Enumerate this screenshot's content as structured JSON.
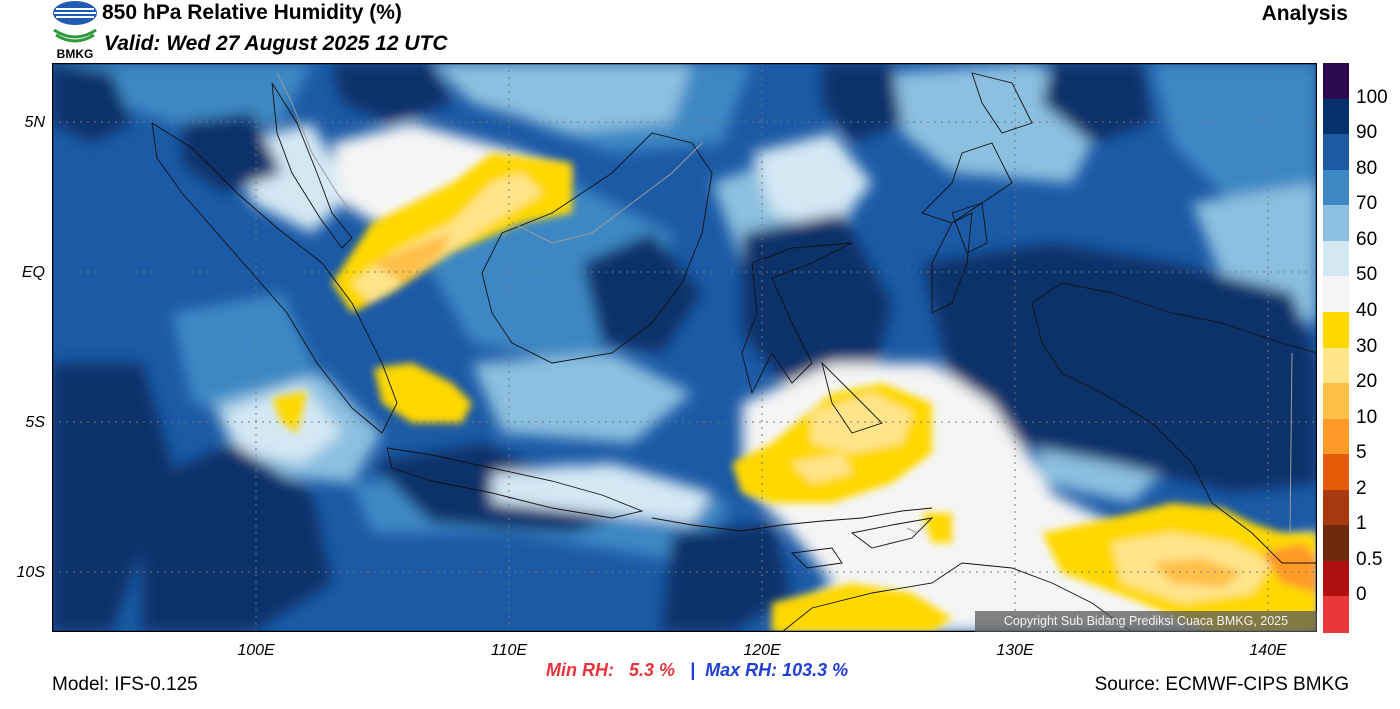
{
  "header": {
    "title": "850 hPa Relative Humidity (%)",
    "valid": "Valid: Wed 27 August 2025 12 UTC",
    "analysis_label": "Analysis",
    "logo_text": "BMKG"
  },
  "map": {
    "latitude_labels": [
      "5N",
      "EQ",
      "5S",
      "10S"
    ],
    "longitude_labels": [
      "100E",
      "110E",
      "120E",
      "130E",
      "140E"
    ],
    "copyright": "Copyright Sub Bidang Prediksi Cuaca BMKG, 2025"
  },
  "colorbar": {
    "labels": [
      "100",
      "90",
      "80",
      "70",
      "60",
      "50",
      "40",
      "30",
      "20",
      "10",
      "5",
      "2",
      "1",
      "0.5",
      "0"
    ],
    "colors": [
      "#2b0a4f",
      "#08306b",
      "#1c5aa6",
      "#3d88c4",
      "#8cc0e0",
      "#d4e8f4",
      "#f5f5f5",
      "#ffd800",
      "#ffe48a",
      "#ffc04a",
      "#ff9a28",
      "#e65a08",
      "#a8380e",
      "#6e2a0e",
      "#b01010",
      "#e8383a"
    ]
  },
  "stats": {
    "min_label": "Min RH:",
    "min_value": "5.3 %",
    "separator": "|",
    "max_label": "Max RH:",
    "max_value": "103.3 %"
  },
  "footer": {
    "model": "Model: IFS-0.125",
    "source": "Source: ECMWF-CIPS BMKG"
  }
}
